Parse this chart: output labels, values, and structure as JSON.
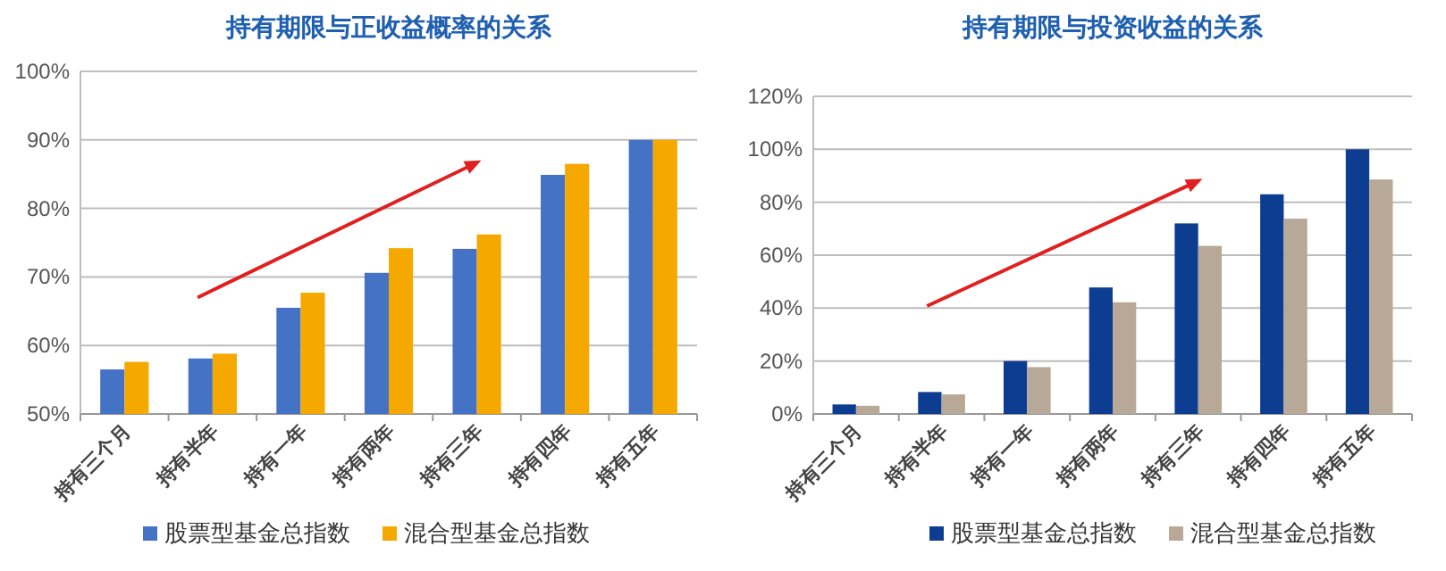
{
  "chart_data": [
    {
      "type": "bar",
      "title": "持有期限与正收益概率的关系",
      "categories": [
        "持有三个月",
        "持有半年",
        "持有一年",
        "持有两年",
        "持有三年",
        "持有四年",
        "持有五年"
      ],
      "series": [
        {
          "name": "股票型基金总指数",
          "color": "#4472c4",
          "values": [
            56.5,
            58.1,
            65.5,
            70.6,
            74.1,
            84.9,
            90
          ]
        },
        {
          "name": "混合型基金总指数",
          "color": "#f5a800",
          "values": [
            57.6,
            58.8,
            67.7,
            74.2,
            76.2,
            86.5,
            90
          ]
        }
      ],
      "ylim": [
        50,
        100
      ],
      "yticks": [
        {
          "value": 50,
          "label": "50%"
        },
        {
          "value": 60,
          "label": "60%"
        },
        {
          "value": 70,
          "label": "70%"
        },
        {
          "value": 80,
          "label": "80%"
        },
        {
          "value": 90,
          "label": "90%"
        },
        {
          "value": 100,
          "label": "100%"
        }
      ],
      "grid": "y",
      "legend": "bottom"
    },
    {
      "type": "bar",
      "title": "持有期限与投资收益的关系",
      "categories": [
        "持有三个月",
        "持有半年",
        "持有一年",
        "持有两年",
        "持有三年",
        "持有四年",
        "持有五年"
      ],
      "series": [
        {
          "name": "股票型基金总指数",
          "color": "#0d3d91",
          "values": [
            3.6,
            8.3,
            20,
            47.8,
            72,
            83,
            100
          ]
        },
        {
          "name": "混合型基金总指数",
          "color": "#b8a898",
          "values": [
            3.1,
            7.4,
            17.7,
            42.2,
            63.5,
            73.8,
            88.6
          ]
        }
      ],
      "ylim": [
        0,
        120
      ],
      "yticks": [
        {
          "value": 0,
          "label": "0%"
        },
        {
          "value": 20,
          "label": "20%"
        },
        {
          "value": 40,
          "label": "40%"
        },
        {
          "value": 60,
          "label": "60%"
        },
        {
          "value": 80,
          "label": "80%"
        },
        {
          "value": 100,
          "label": "100%"
        },
        {
          "value": 120,
          "label": "120%"
        }
      ],
      "grid": "y",
      "legend": "bottom"
    }
  ]
}
